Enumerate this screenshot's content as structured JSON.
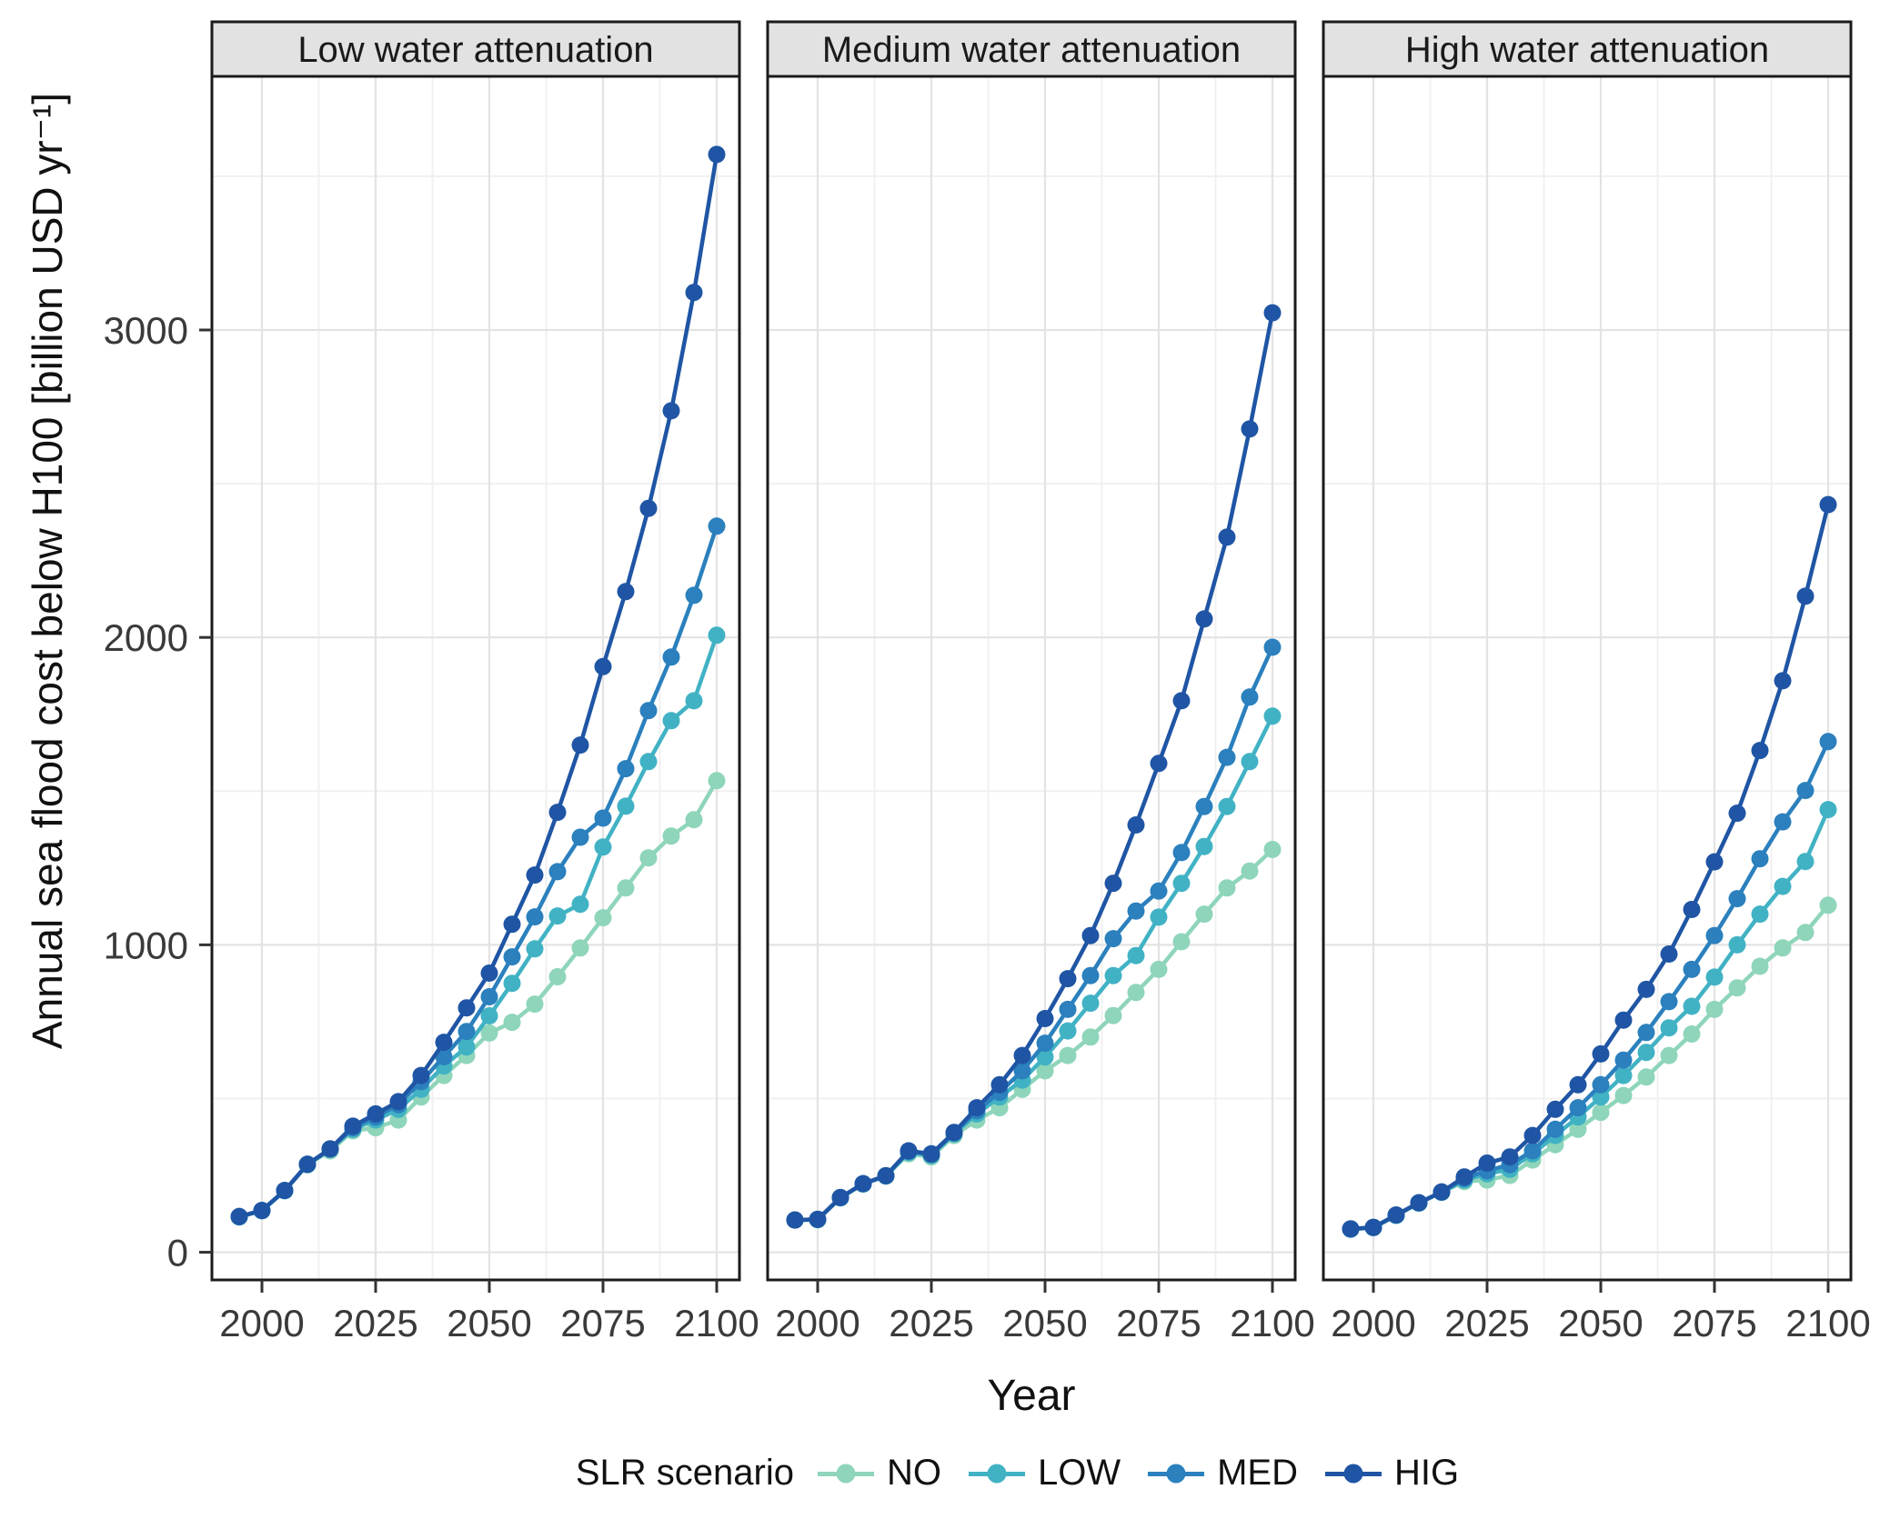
{
  "legend": {
    "title": "SLR scenario",
    "entries": [
      "NO",
      "LOW",
      "MED",
      "HIG"
    ]
  },
  "chart_data": {
    "type": "line",
    "title": "",
    "xlabel": "Year",
    "ylabel": "Annual sea flood cost below H100 [billion USD yr⁻¹]",
    "x": [
      1995,
      2000,
      2005,
      2010,
      2015,
      2020,
      2025,
      2030,
      2035,
      2040,
      2045,
      2050,
      2055,
      2060,
      2065,
      2070,
      2075,
      2080,
      2085,
      2090,
      2095,
      2100
    ],
    "x_ticks": [
      2000,
      2025,
      2050,
      2075,
      2100
    ],
    "x_minor_ticks": [
      2012.5,
      2037.5,
      2062.5,
      2087.5
    ],
    "y_ticks": [
      0,
      1000,
      2000,
      3000
    ],
    "y_minor_ticks": [
      500,
      1500,
      2500,
      3500
    ],
    "xlim": [
      1989,
      2105
    ],
    "ylim": [
      -90,
      3825
    ],
    "grid": true,
    "legend_position": "bottom",
    "series_colors": {
      "NO": "#8ed5ba",
      "LOW": "#41b2c4",
      "MED": "#2b80bd",
      "HIG": "#1f55a4"
    },
    "panels": [
      {
        "label": "Low water attenuation",
        "series": [
          {
            "name": "NO",
            "values": [
              115,
              135,
              200,
              285,
              330,
              395,
              405,
              430,
              505,
              575,
              640,
              713,
              748,
              807,
              896,
              990,
              1088,
              1185,
              1283,
              1354,
              1407,
              1534
            ]
          },
          {
            "name": "LOW",
            "values": [
              115,
              135,
              200,
              285,
              335,
              400,
              430,
              465,
              530,
              606,
              668,
              769,
              875,
              987,
              1094,
              1132,
              1318,
              1451,
              1596,
              1729,
              1794,
              2007
            ]
          },
          {
            "name": "MED",
            "values": [
              116,
              136,
              201,
              286,
              336,
              405,
              440,
              480,
              555,
              636,
              718,
              831,
              961,
              1091,
              1238,
              1350,
              1412,
              1573,
              1762,
              1936,
              2137,
              2362
            ]
          },
          {
            "name": "HIG",
            "values": [
              116,
              136,
              201,
              286,
              336,
              410,
              450,
              490,
              575,
              683,
              795,
              908,
              1067,
              1227,
              1431,
              1650,
              1905,
              2149,
              2420,
              2737,
              3122,
              3571
            ]
          }
        ]
      },
      {
        "label": "Medium water attenuation",
        "series": [
          {
            "name": "NO",
            "values": [
              105,
              106,
              177,
              222,
              248,
              320,
              310,
              380,
              430,
              470,
              530,
              590,
              640,
              700,
              770,
              845,
              920,
              1010,
              1100,
              1185,
              1240,
              1310
            ]
          },
          {
            "name": "LOW",
            "values": [
              105,
              106,
              177,
              222,
              248,
              325,
              315,
              385,
              450,
              505,
              560,
              635,
              720,
              810,
              900,
              965,
              1090,
              1200,
              1320,
              1450,
              1596,
              1744
            ]
          },
          {
            "name": "MED",
            "values": [
              105,
              107,
              178,
              223,
              249,
              328,
              318,
              388,
              460,
              520,
              590,
              680,
              790,
              900,
              1020,
              1110,
              1175,
              1300,
              1450,
              1610,
              1806,
              1968
            ]
          },
          {
            "name": "HIG",
            "values": [
              105,
              107,
              178,
              223,
              249,
              330,
              320,
              390,
              470,
              545,
              640,
              760,
              890,
              1030,
              1200,
              1390,
              1590,
              1794,
              2060,
              2326,
              2678,
              3056
            ]
          }
        ]
      },
      {
        "label": "High water attenuation",
        "series": [
          {
            "name": "NO",
            "values": [
              75,
              80,
              120,
              160,
              195,
              230,
              235,
              250,
              300,
              350,
              400,
              455,
              510,
              570,
              640,
              710,
              790,
              860,
              930,
              990,
              1040,
              1129
            ]
          },
          {
            "name": "LOW",
            "values": [
              75,
              80,
              120,
              160,
              195,
              235,
              255,
              270,
              320,
              380,
              440,
              505,
              575,
              650,
              730,
              800,
              895,
              1000,
              1100,
              1190,
              1271,
              1440
            ]
          },
          {
            "name": "MED",
            "values": [
              76,
              81,
              121,
              161,
              196,
              240,
              265,
              285,
              330,
              400,
              470,
              545,
              625,
              715,
              815,
              920,
              1030,
              1150,
              1280,
              1400,
              1502,
              1661
            ]
          },
          {
            "name": "HIG",
            "values": [
              76,
              81,
              121,
              161,
              196,
              245,
              290,
              310,
              380,
              465,
              545,
              645,
              755,
              855,
              970,
              1115,
              1270,
              1428,
              1632,
              1859,
              2134,
              2432
            ]
          }
        ]
      }
    ]
  }
}
